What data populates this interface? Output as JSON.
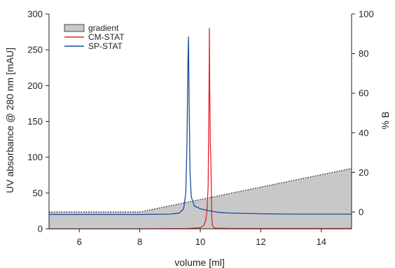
{
  "chart_data": {
    "type": "line",
    "xlabel": "volume [ml]",
    "ylabel": "UV absorbance @ 280 nm [mAU]",
    "y2label": "% B",
    "xlim": [
      5,
      15
    ],
    "ylim": [
      0,
      300
    ],
    "y2lim": [
      -8.5,
      100
    ],
    "xticks": [
      6,
      8,
      10,
      12,
      14
    ],
    "yticks": [
      0,
      50,
      100,
      150,
      200,
      250,
      300
    ],
    "y2ticks": [
      0,
      20,
      40,
      60,
      80,
      100
    ],
    "grid": false,
    "legend_position": "top-left",
    "series": [
      {
        "name": "gradient",
        "kind": "area",
        "axis": "right",
        "color": "#c8c8c8",
        "x": [
          5,
          8,
          15
        ],
        "y": [
          0,
          0,
          22
        ]
      },
      {
        "name": "CM-STAT",
        "kind": "line",
        "axis": "left",
        "color": "#e8202a",
        "x": [
          5,
          6,
          7,
          8,
          9,
          9.6,
          10.0,
          10.12,
          10.18,
          10.22,
          10.26,
          10.29,
          10.3,
          10.31,
          10.33,
          10.35,
          10.36,
          10.37,
          10.38,
          10.4,
          10.44,
          10.5,
          11,
          12,
          13,
          14,
          15
        ],
        "y": [
          0,
          0,
          0,
          0,
          0.3,
          0.5,
          1.5,
          5,
          12,
          25,
          60,
          200,
          280,
          210,
          120,
          93,
          70,
          40,
          15,
          5,
          2,
          1,
          0.5,
          0.5,
          0.5,
          0.5,
          0.5
        ]
      },
      {
        "name": "SP-STAT",
        "kind": "line",
        "axis": "left",
        "color": "#1a4a9c",
        "x": [
          5,
          6,
          7,
          8,
          9,
          9.3,
          9.45,
          9.52,
          9.56,
          9.59,
          9.61,
          9.63,
          9.66,
          9.7,
          9.8,
          10,
          10.3,
          10.6,
          11,
          12,
          13,
          14,
          15
        ],
        "y": [
          20,
          20,
          20,
          20,
          20.5,
          22,
          28,
          50,
          120,
          230,
          268,
          180,
          80,
          45,
          32,
          28,
          25,
          23,
          22,
          21,
          20.5,
          20.5,
          20.5
        ]
      }
    ]
  }
}
